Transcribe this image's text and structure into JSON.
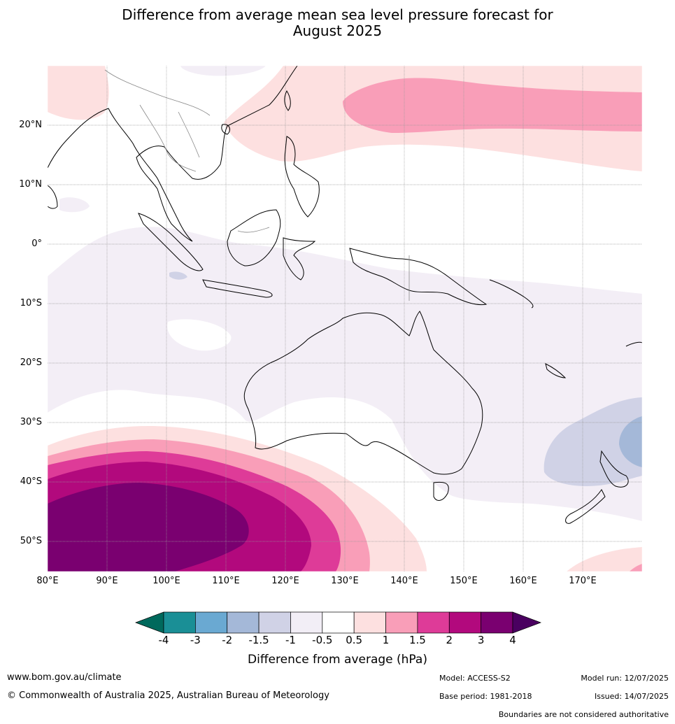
{
  "title_line1": "Difference from average mean sea level pressure forecast for",
  "title_line2": "August 2025",
  "lat_labels": [
    "20°N",
    "10°N",
    "0°",
    "10°S",
    "20°S",
    "30°S",
    "40°S",
    "50°S"
  ],
  "lon_labels": [
    "80°E",
    "90°E",
    "100°E",
    "110°E",
    "120°E",
    "130°E",
    "140°E",
    "150°E",
    "160°E",
    "170°E"
  ],
  "colorbar": {
    "ticks": [
      "-4",
      "-3",
      "-2",
      "-1.5",
      "-1",
      "-0.5",
      "0.5",
      "1",
      "1.5",
      "2",
      "3",
      "4"
    ],
    "colors": [
      "#1a8f96",
      "#6aa9d2",
      "#a4b8d8",
      "#d0d2e6",
      "#f2eef6",
      "#ffffff",
      "#fde0e0",
      "#f99eb8",
      "#de3b98",
      "#b2097d",
      "#7a0070"
    ],
    "low_end_color": "#00695c",
    "high_end_color": "#4a0060",
    "title": "Difference from average (hPa)"
  },
  "footer": {
    "website": "www.bom.gov.au/climate",
    "copyright": "© Commonwealth of Australia 2025, Australian Bureau of Meteorology",
    "model": "Model: ACCESS-S2",
    "base_period": "Base period: 1981-2018",
    "model_run": "Model run: 12/07/2025",
    "issued": "Issued: 14/07/2025",
    "disclaimer": "Boundaries are not considered authoritative"
  }
}
